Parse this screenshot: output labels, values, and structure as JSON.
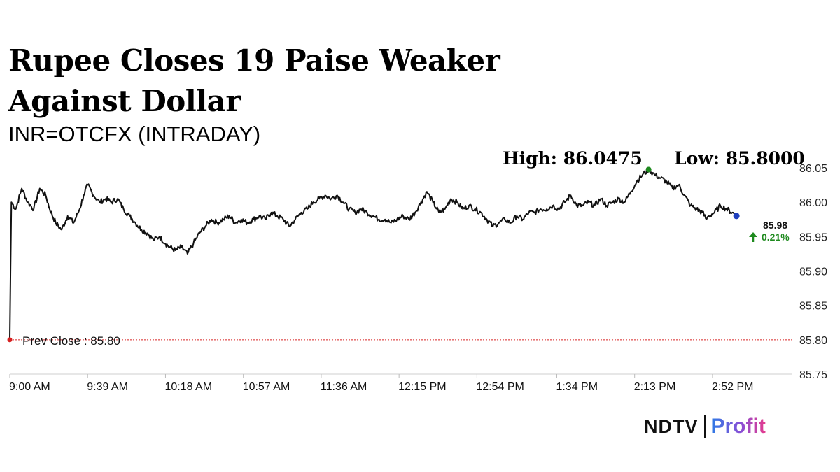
{
  "header": {
    "title": "Rupee Closes 19 Paise Weaker Against Dollar",
    "subtitle": "INR=OTCFX (INTRADAY)"
  },
  "stats": {
    "high": "High: 86.0475",
    "low": "Low: 85.8000"
  },
  "brand": {
    "ndtv": "NDTV",
    "profit": "Profit"
  },
  "colors": {
    "line": "#111111",
    "prev_close": "#d62020",
    "high_marker": "#1e8a1e",
    "last_marker": "#1f3fbf",
    "change_up": "#1e8a1e"
  },
  "chart_data": {
    "type": "line",
    "series": [
      {
        "values": [
          [
            0.0,
            85.8
          ],
          [
            0.8,
            86.0
          ],
          [
            3,
            85.99
          ],
          [
            6,
            86.02
          ],
          [
            9,
            86.0
          ],
          [
            12,
            85.99
          ],
          [
            15,
            86.02
          ],
          [
            18,
            86.01
          ],
          [
            20,
            85.99
          ],
          [
            23,
            85.97
          ],
          [
            26,
            85.96
          ],
          [
            29,
            85.98
          ],
          [
            32,
            85.97
          ],
          [
            35,
            85.99
          ],
          [
            37,
            86.01
          ],
          [
            39,
            86.025
          ],
          [
            42,
            86.01
          ],
          [
            45,
            86.0
          ],
          [
            48,
            86.005
          ],
          [
            51,
            86.0
          ],
          [
            54,
            86.005
          ],
          [
            57,
            85.99
          ],
          [
            60,
            85.98
          ],
          [
            63,
            85.97
          ],
          [
            66,
            85.96
          ],
          [
            69,
            85.955
          ],
          [
            72,
            85.945
          ],
          [
            75,
            85.95
          ],
          [
            78,
            85.94
          ],
          [
            80,
            85.935
          ],
          [
            83,
            85.93
          ],
          [
            86,
            85.935
          ],
          [
            89,
            85.925
          ],
          [
            92,
            85.94
          ],
          [
            95,
            85.955
          ],
          [
            98,
            85.965
          ],
          [
            101,
            85.975
          ],
          [
            104,
            85.97
          ],
          [
            107,
            85.975
          ],
          [
            110,
            85.98
          ],
          [
            113,
            85.97
          ],
          [
            116,
            85.975
          ],
          [
            119,
            85.97
          ],
          [
            122,
            85.975
          ],
          [
            125,
            85.98
          ],
          [
            128,
            85.975
          ],
          [
            131,
            85.985
          ],
          [
            134,
            85.98
          ],
          [
            137,
            85.975
          ],
          [
            140,
            85.965
          ],
          [
            143,
            85.975
          ],
          [
            146,
            85.985
          ],
          [
            149,
            85.99
          ],
          [
            152,
            86.0
          ],
          [
            155,
            86.005
          ],
          [
            158,
            86.01
          ],
          [
            161,
            86.005
          ],
          [
            164,
            86.01
          ],
          [
            167,
            86.0
          ],
          [
            170,
            85.99
          ],
          [
            173,
            85.985
          ],
          [
            176,
            85.99
          ],
          [
            179,
            85.985
          ],
          [
            182,
            85.98
          ],
          [
            185,
            85.975
          ],
          [
            188,
            85.975
          ],
          [
            191,
            85.97
          ],
          [
            194,
            85.975
          ],
          [
            197,
            85.98
          ],
          [
            200,
            85.975
          ],
          [
            203,
            85.985
          ],
          [
            206,
            86.0
          ],
          [
            209,
            86.015
          ],
          [
            212,
            86.0
          ],
          [
            215,
            85.985
          ],
          [
            218,
            85.99
          ],
          [
            221,
            86.005
          ],
          [
            224,
            86.0
          ],
          [
            227,
            85.99
          ],
          [
            230,
            85.995
          ],
          [
            233,
            85.99
          ],
          [
            236,
            85.985
          ],
          [
            239,
            85.975
          ],
          [
            242,
            85.965
          ],
          [
            245,
            85.97
          ],
          [
            248,
            85.975
          ],
          [
            251,
            85.97
          ],
          [
            254,
            85.98
          ],
          [
            257,
            85.975
          ],
          [
            260,
            85.985
          ],
          [
            263,
            85.985
          ],
          [
            266,
            85.99
          ],
          [
            269,
            85.99
          ],
          [
            272,
            85.995
          ],
          [
            275,
            85.99
          ],
          [
            278,
            86.0
          ],
          [
            281,
            86.01
          ],
          [
            284,
            85.995
          ],
          [
            287,
            85.995
          ],
          [
            290,
            86.0
          ],
          [
            293,
            85.995
          ],
          [
            296,
            86.005
          ],
          [
            299,
            85.995
          ],
          [
            302,
            86.0
          ],
          [
            305,
            86.005
          ],
          [
            308,
            86.0
          ],
          [
            311,
            86.015
          ],
          [
            314,
            86.03
          ],
          [
            317,
            86.04
          ],
          [
            320,
            86.0475
          ],
          [
            323,
            86.04
          ],
          [
            326,
            86.035
          ],
          [
            329,
            86.03
          ],
          [
            332,
            86.02
          ],
          [
            335,
            86.025
          ],
          [
            338,
            86.01
          ],
          [
            341,
            85.995
          ],
          [
            344,
            85.99
          ],
          [
            347,
            85.985
          ],
          [
            349,
            85.975
          ],
          [
            350,
            85.98
          ],
          [
            353,
            85.985
          ],
          [
            356,
            85.995
          ],
          [
            359,
            85.99
          ],
          [
            362,
            85.985
          ],
          [
            364,
            85.98
          ]
        ]
      }
    ],
    "x_labels": [
      "9:00 AM",
      "9:39 AM",
      "10:18 AM",
      "10:57 AM",
      "11:36 AM",
      "12:15 PM",
      "12:54 PM",
      "1:34 PM",
      "2:13 PM",
      "2:52 PM"
    ],
    "x_label_minutes": [
      0,
      39,
      78,
      117,
      156,
      195,
      234,
      274,
      313,
      352
    ],
    "x_range": [
      0,
      392
    ],
    "y_ticks": [
      "86.05",
      "86.00",
      "85.95",
      "85.90",
      "85.85",
      "85.80",
      "85.75"
    ],
    "ylim": [
      85.75,
      86.05
    ],
    "prev_close": {
      "value": 85.8,
      "label": "Prev Close : 85.80"
    },
    "last": {
      "value_label": "85.98",
      "change_label": "0.21%"
    },
    "high_point_minute": 320
  }
}
